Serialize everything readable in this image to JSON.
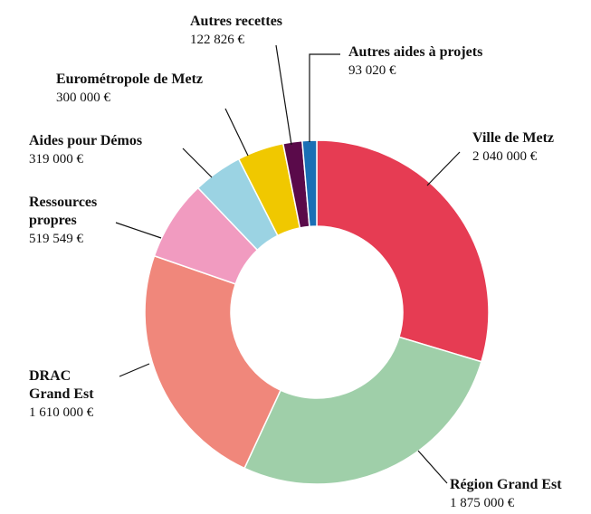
{
  "chart_data": {
    "type": "donut",
    "categories": [
      "Ville de Metz",
      "Région Grand Est",
      "DRAC Grand Est",
      "Ressources propres",
      "Aides pour Démos",
      "Eurométropole de Metz",
      "Autres recettes",
      "Autres aides à projets"
    ],
    "values": [
      2040000,
      1875000,
      1610000,
      519549,
      319000,
      300000,
      122826,
      93020
    ],
    "value_labels": [
      "2 040 000 €",
      "1 875 000 €",
      "1 610 000 €",
      "519 549 €",
      "319 000 €",
      "300 000 €",
      "122 826 €",
      "93 020 €"
    ],
    "colors": [
      "#e63c53",
      "#9fcfa9",
      "#f0877b",
      "#f19bc0",
      "#9bd3e3",
      "#f0c800",
      "#5a0a4a",
      "#1a6fb5"
    ]
  }
}
